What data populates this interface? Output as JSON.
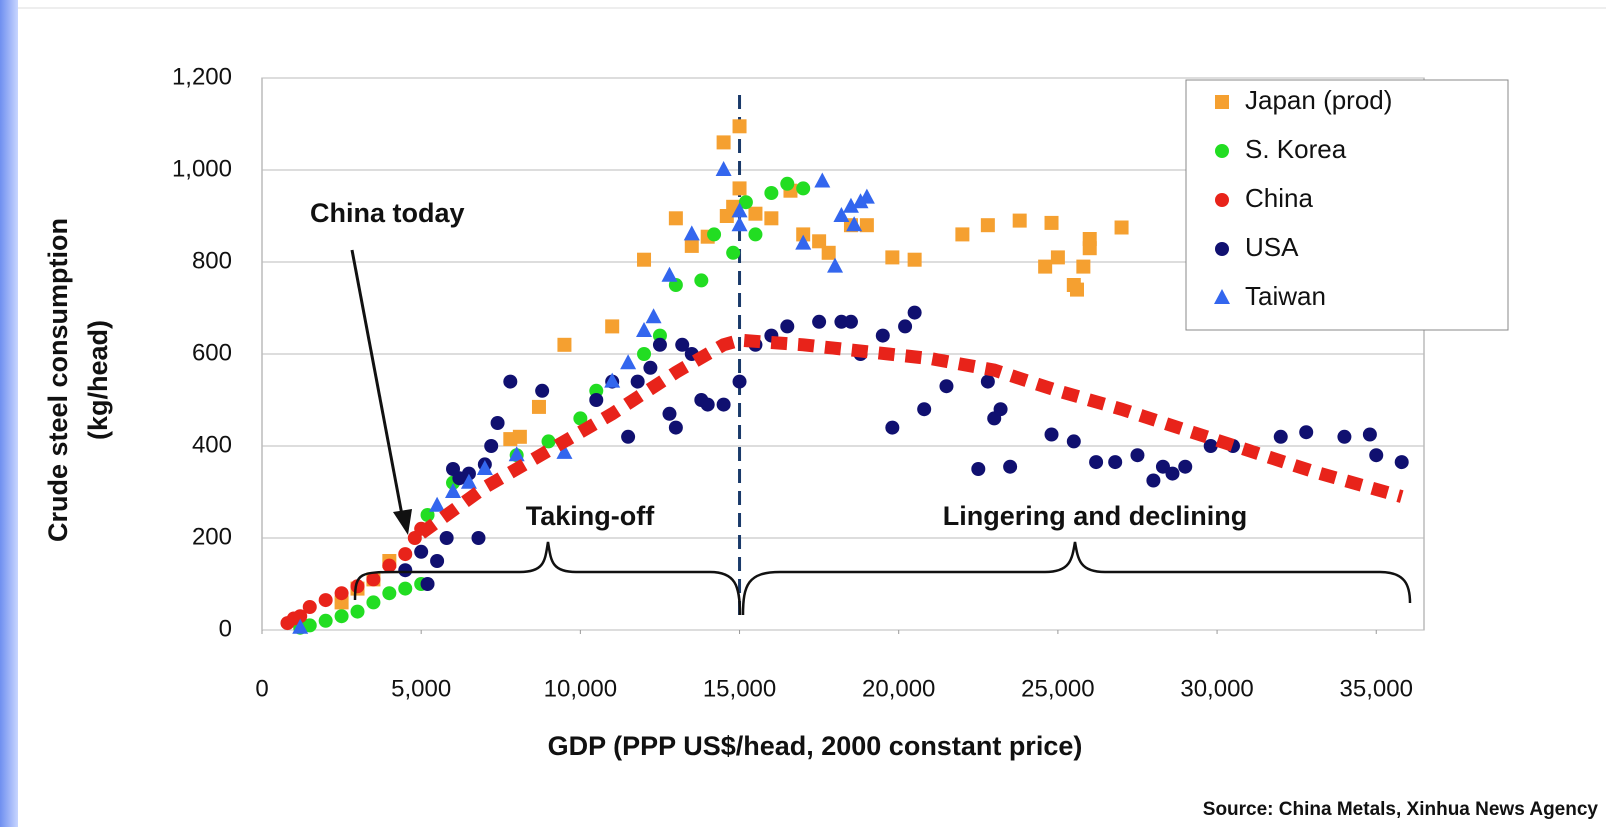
{
  "chart_data": {
    "type": "scatter",
    "xlabel": "GDP (PPP US$/head, 2000 constant price)",
    "ylabel": [
      "Crude steel consumption",
      "(kg/head)"
    ],
    "source": "Source: China Metals, Xinhua News Agency",
    "annotations": [
      "China today",
      "Taking-off",
      "Lingering and declining"
    ],
    "xlim": [
      0,
      36500
    ],
    "ylim": [
      0,
      1200
    ],
    "xticks": [
      0,
      {
        "value": 5000,
        "label": "5,000"
      },
      {
        "value": 10000,
        "label": "10,000"
      },
      {
        "value": 15000,
        "label": "15,000"
      },
      {
        "value": 20000,
        "label": "20,000"
      },
      {
        "value": 25000,
        "label": "25,000"
      },
      {
        "value": 30000,
        "label": "30,000"
      },
      {
        "value": 35000,
        "label": "35,000"
      }
    ],
    "yticks": [
      0,
      200,
      400,
      600,
      800,
      {
        "value": 1000,
        "label": "1,000"
      },
      {
        "value": 1200,
        "label": "1,200"
      }
    ],
    "grid": true,
    "legend": "upper right",
    "vline": 15000,
    "series": [
      {
        "name": "Japan (prod)",
        "color": "#f5a030",
        "marker": "square",
        "x": [
          2500,
          3000,
          3500,
          4000,
          7800,
          8100,
          8700,
          9500,
          11000,
          12000,
          13000,
          13500,
          14000,
          14500,
          14600,
          14800,
          15000,
          15000,
          15500,
          16000,
          16600,
          17000,
          17500,
          17800,
          18500,
          19000,
          19800,
          20500,
          22000,
          22800,
          23800,
          24800,
          24600,
          25000,
          25500,
          25600,
          25800,
          26000,
          26000,
          27000
        ],
        "values": [
          60,
          90,
          110,
          150,
          415,
          420,
          485,
          620,
          660,
          805,
          895,
          835,
          855,
          1060,
          900,
          920,
          1095,
          960,
          905,
          895,
          955,
          860,
          845,
          820,
          880,
          880,
          810,
          805,
          860,
          880,
          890,
          885,
          790,
          810,
          750,
          740,
          790,
          830,
          850,
          875
        ]
      },
      {
        "name": "S. Korea",
        "color": "#22dd22",
        "marker": "circle",
        "x": [
          1200,
          1500,
          2000,
          2500,
          3000,
          3500,
          4000,
          4500,
          5000,
          5200,
          6000,
          8000,
          9000,
          10000,
          10500,
          12000,
          12500,
          13000,
          13800,
          14200,
          14800,
          15200,
          15500,
          16000,
          16500,
          17000
        ],
        "values": [
          5,
          10,
          20,
          30,
          40,
          60,
          80,
          90,
          100,
          250,
          320,
          380,
          410,
          460,
          520,
          600,
          640,
          750,
          760,
          860,
          820,
          930,
          860,
          950,
          970,
          960
        ]
      },
      {
        "name": "China",
        "color": "#e8231a",
        "marker": "circle",
        "x": [
          800,
          1000,
          1200,
          1500,
          2000,
          2500,
          3000,
          3500,
          4000,
          4500,
          4800,
          5000
        ],
        "values": [
          15,
          25,
          30,
          50,
          65,
          80,
          95,
          110,
          140,
          165,
          200,
          220
        ]
      },
      {
        "name": "USA",
        "color": "#101070",
        "marker": "circle",
        "x": [
          4500,
          5000,
          5200,
          5500,
          5800,
          6000,
          6200,
          6500,
          6800,
          7000,
          7200,
          7400,
          7800,
          8800,
          10500,
          11000,
          11500,
          11800,
          12200,
          12500,
          12800,
          13000,
          13200,
          13500,
          13800,
          14000,
          14500,
          15000,
          15500,
          16000,
          16500,
          17500,
          18200,
          18500,
          18800,
          19500,
          20200,
          20500,
          19800,
          20800,
          21500,
          22500,
          22800,
          23000,
          23200,
          23500,
          24800,
          25500,
          26200,
          26800,
          27500,
          28000,
          28300,
          28600,
          29000,
          29800,
          30500,
          32000,
          32800,
          34000,
          34800,
          35000,
          35800
        ],
        "values": [
          130,
          170,
          100,
          150,
          200,
          350,
          330,
          340,
          200,
          360,
          400,
          450,
          540,
          520,
          500,
          540,
          420,
          540,
          570,
          620,
          470,
          440,
          620,
          600,
          500,
          490,
          490,
          540,
          620,
          640,
          660,
          670,
          670,
          670,
          600,
          640,
          660,
          690,
          440,
          480,
          530,
          350,
          540,
          460,
          480,
          355,
          425,
          410,
          365,
          365,
          380,
          325,
          355,
          340,
          355,
          400,
          400,
          420,
          430,
          420,
          425,
          380,
          365
        ]
      },
      {
        "name": "Taiwan",
        "color": "#3366ee",
        "marker": "triangle",
        "x": [
          1200,
          5500,
          6000,
          6500,
          7000,
          8000,
          9500,
          11000,
          11500,
          12000,
          12300,
          12800,
          13500,
          14500,
          15000,
          15000,
          17000,
          17600,
          18000,
          18200,
          18500,
          18800,
          19000,
          18600
        ],
        "values": [
          5,
          270,
          300,
          320,
          350,
          380,
          385,
          540,
          580,
          650,
          680,
          770,
          860,
          1000,
          880,
          910,
          840,
          975,
          790,
          900,
          920,
          930,
          940,
          880
        ]
      }
    ],
    "trend": {
      "color": "#e8231a",
      "x": [
        5000,
        7000,
        9000,
        11000,
        13000,
        14500,
        15000,
        17000,
        19000,
        21000,
        23000,
        25000,
        27000,
        29000,
        31000,
        33000,
        35800
      ],
      "values": [
        210,
        310,
        390,
        470,
        560,
        620,
        630,
        620,
        605,
        590,
        565,
        520,
        480,
        435,
        390,
        345,
        290
      ]
    }
  }
}
